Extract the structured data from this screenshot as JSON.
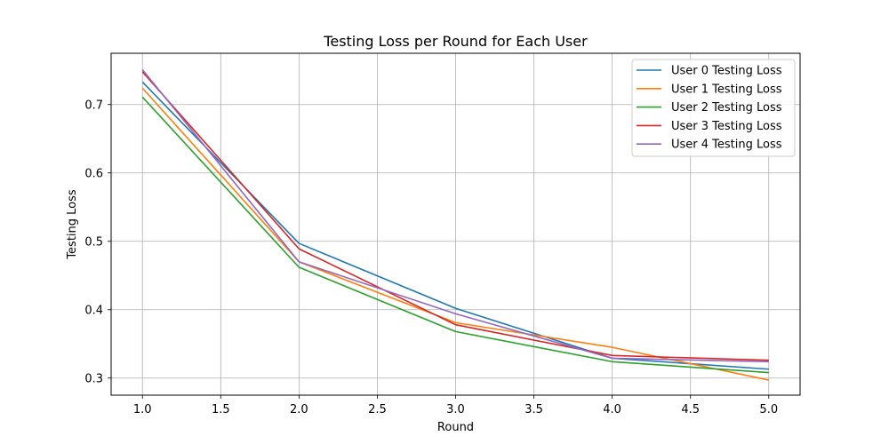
{
  "chart_data": {
    "type": "line",
    "title": "Testing Loss per Round for Each User",
    "xlabel": "Round",
    "ylabel": "Testing Loss",
    "xlim": [
      0.8,
      5.2
    ],
    "ylim": [
      0.275,
      0.775
    ],
    "xticks": [
      1.0,
      1.5,
      2.0,
      2.5,
      3.0,
      3.5,
      4.0,
      4.5,
      5.0
    ],
    "xtick_labels": [
      "1.0",
      "1.5",
      "2.0",
      "2.5",
      "3.0",
      "3.5",
      "4.0",
      "4.5",
      "5.0"
    ],
    "yticks": [
      0.3,
      0.4,
      0.5,
      0.6,
      0.7
    ],
    "ytick_labels": [
      "0.3",
      "0.4",
      "0.5",
      "0.6",
      "0.7"
    ],
    "grid": true,
    "legend_position": "top-right",
    "x": [
      1,
      2,
      3,
      4,
      5
    ],
    "series": [
      {
        "name": "User 0 Testing Loss",
        "color": "#1f77b4",
        "values": [
          0.733,
          0.497,
          0.402,
          0.329,
          0.313
        ]
      },
      {
        "name": "User 1 Testing Loss",
        "color": "#ff7f0e",
        "values": [
          0.724,
          0.47,
          0.381,
          0.345,
          0.297
        ]
      },
      {
        "name": "User 2 Testing Loss",
        "color": "#2ca02c",
        "values": [
          0.711,
          0.462,
          0.368,
          0.324,
          0.308
        ]
      },
      {
        "name": "User 3 Testing Loss",
        "color": "#d62728",
        "values": [
          0.748,
          0.489,
          0.378,
          0.333,
          0.326
        ]
      },
      {
        "name": "User 4 Testing Loss",
        "color": "#9467bd",
        "values": [
          0.751,
          0.47,
          0.394,
          0.329,
          0.324
        ]
      }
    ]
  }
}
